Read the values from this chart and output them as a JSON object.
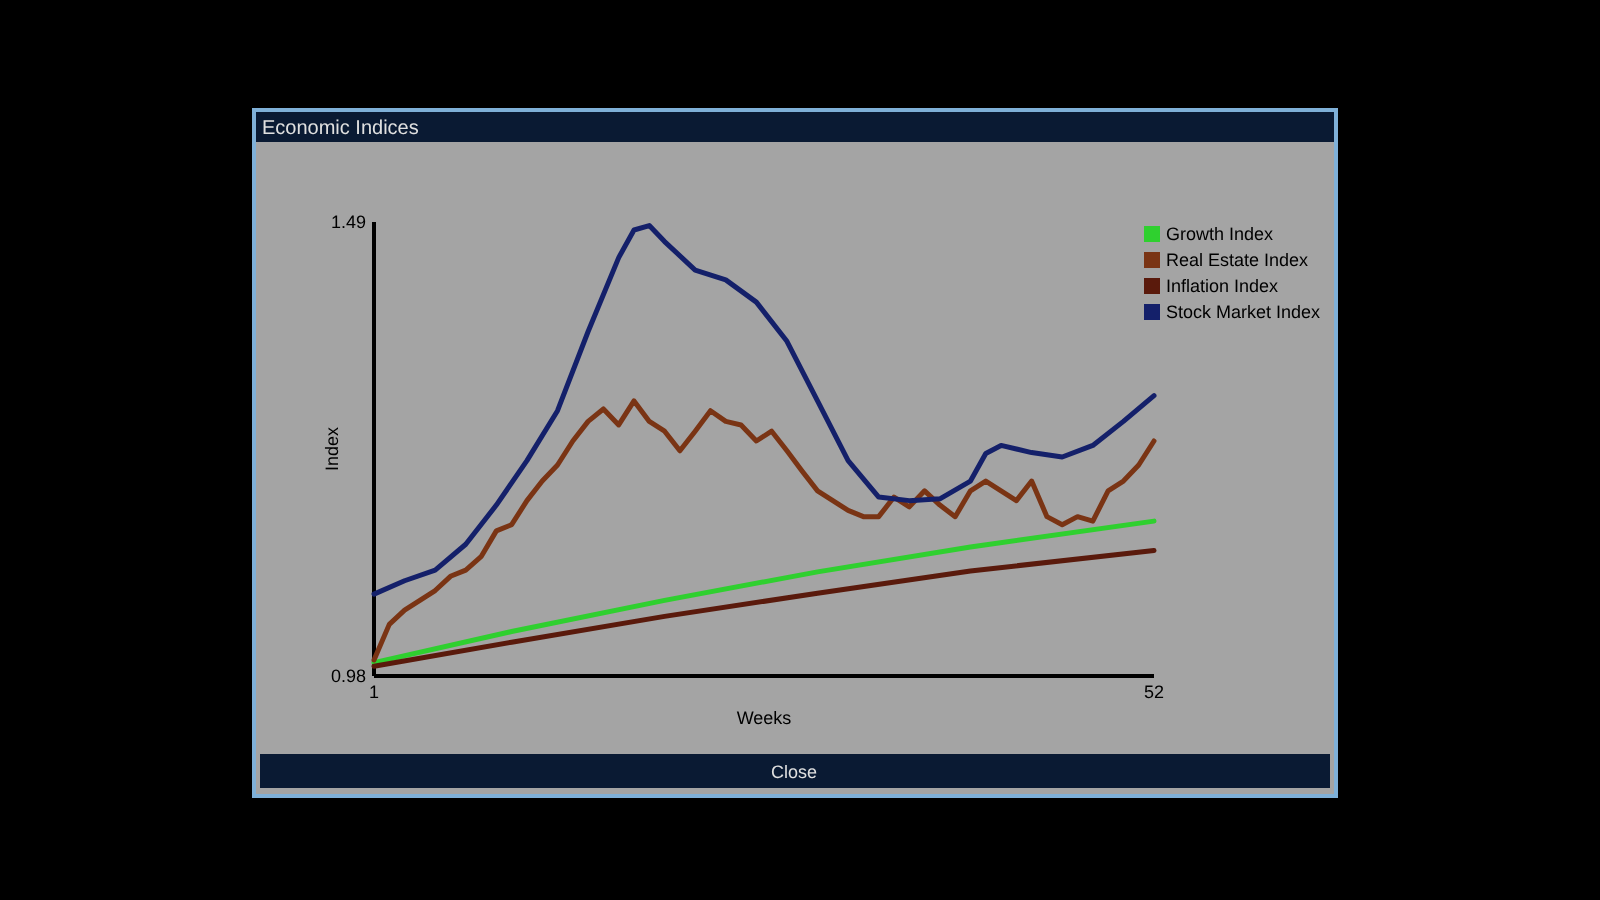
{
  "chart_data": {
    "type": "line",
    "title": "Economic Indices",
    "xlabel": "Weeks",
    "ylabel": "Index",
    "annotations": [
      "Close"
    ],
    "xlim": [
      1,
      52
    ],
    "xticks": [
      1,
      52
    ],
    "ylim": [
      0.98,
      1.49
    ],
    "yticks": [
      0.98,
      1.49
    ],
    "legend": "top right",
    "grid": false,
    "line_style": "solid",
    "series": [
      {
        "name": "Growth Index",
        "color": "#2fd02f",
        "x": [
          1,
          10,
          20,
          30,
          40,
          52
        ],
        "values": [
          0.995,
          1.03,
          1.065,
          1.097,
          1.125,
          1.154
        ]
      },
      {
        "name": "Real Estate Index",
        "color": "#7a3414",
        "x": [
          1,
          2,
          3,
          4,
          5,
          6,
          7,
          8,
          9,
          10,
          11,
          12,
          13,
          14,
          15,
          16,
          17,
          18,
          19,
          20,
          21,
          22,
          23,
          24,
          25,
          26,
          27,
          28,
          29,
          30,
          31,
          32,
          33,
          34,
          35,
          36,
          37,
          38,
          39,
          40,
          41,
          42,
          43,
          44,
          45,
          46,
          47,
          48,
          49,
          50,
          51,
          52
        ],
        "values": [
          0.998,
          1.038,
          1.054,
          1.065,
          1.076,
          1.092,
          1.099,
          1.114,
          1.143,
          1.15,
          1.177,
          1.199,
          1.217,
          1.244,
          1.266,
          1.28,
          1.262,
          1.289,
          1.266,
          1.255,
          1.233,
          1.255,
          1.278,
          1.266,
          1.262,
          1.244,
          1.255,
          1.233,
          1.21,
          1.188,
          1.177,
          1.166,
          1.159,
          1.159,
          1.181,
          1.17,
          1.188,
          1.172,
          1.159,
          1.188,
          1.199,
          1.188,
          1.177,
          1.199,
          1.159,
          1.15,
          1.159,
          1.154,
          1.188,
          1.199,
          1.217,
          1.244
        ]
      },
      {
        "name": "Inflation Index",
        "color": "#5a1a0c",
        "x": [
          1,
          10,
          20,
          30,
          40,
          52
        ],
        "values": [
          0.991,
          1.018,
          1.047,
          1.073,
          1.098,
          1.121
        ]
      },
      {
        "name": "Stock Market Index",
        "color": "#14206a",
        "x": [
          1,
          3,
          5,
          7,
          9,
          11,
          13,
          15,
          17,
          18,
          19,
          20,
          22,
          24,
          26,
          28,
          30,
          32,
          34,
          36,
          38,
          40,
          41,
          42,
          44,
          46,
          48,
          50,
          52
        ],
        "values": [
          1.072,
          1.087,
          1.099,
          1.128,
          1.172,
          1.222,
          1.278,
          1.367,
          1.45,
          1.481,
          1.486,
          1.468,
          1.436,
          1.425,
          1.4,
          1.356,
          1.289,
          1.222,
          1.181,
          1.177,
          1.179,
          1.199,
          1.23,
          1.239,
          1.231,
          1.226,
          1.239,
          1.266,
          1.295
        ]
      }
    ]
  }
}
